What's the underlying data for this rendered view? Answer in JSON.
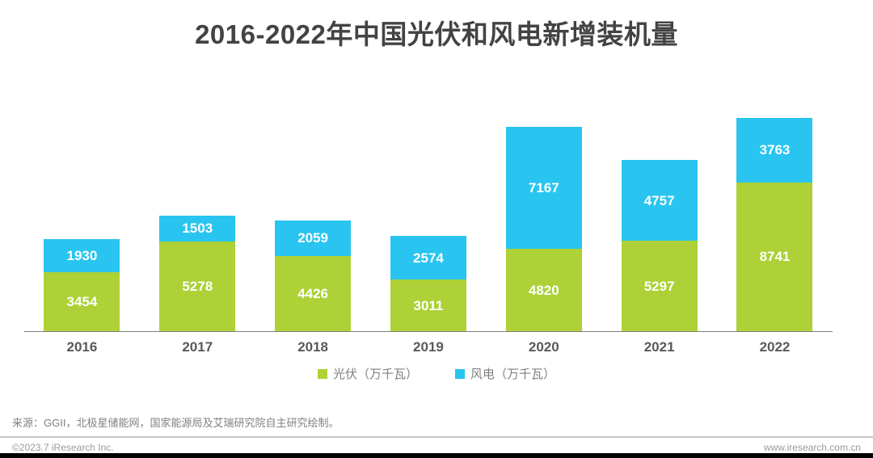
{
  "title": "2016-2022年中国光伏和风电新增装机量",
  "chart_data": {
    "type": "bar",
    "stacked": true,
    "title": "2016-2022年中国光伏和风电新增装机量",
    "categories": [
      "2016",
      "2017",
      "2018",
      "2019",
      "2020",
      "2021",
      "2022"
    ],
    "series": [
      {
        "name": "光伏",
        "unit": "万千瓦",
        "color": "#ADD136",
        "values": [
          3454,
          5278,
          4426,
          3011,
          4820,
          5297,
          8741
        ]
      },
      {
        "name": "风电",
        "unit": "万千瓦",
        "color": "#29C5F0",
        "values": [
          1930,
          1503,
          2059,
          2574,
          7167,
          4757,
          3763
        ]
      }
    ],
    "value_labels": "inside-white",
    "legend_position": "bottom",
    "xlabel": "",
    "ylabel": "",
    "grid": false
  },
  "legend": {
    "items": [
      {
        "label": "光伏（万千瓦）",
        "color": "#ADD136"
      },
      {
        "label": "风电（万千瓦）",
        "color": "#29C5F0"
      }
    ]
  },
  "footer": {
    "source": "来源：GGII，北极星储能网，国家能源局及艾瑞研究院自主研究绘制。",
    "copyright": "©2023.7 iResearch Inc.",
    "website": "www.iresearch.com.cn"
  },
  "colors": {
    "pv_green": "#ADD136",
    "wind_blue": "#29C5F0",
    "title_text": "#434343",
    "axis_line": "#7f7f7f",
    "footer_text": "#9a9a9a"
  }
}
